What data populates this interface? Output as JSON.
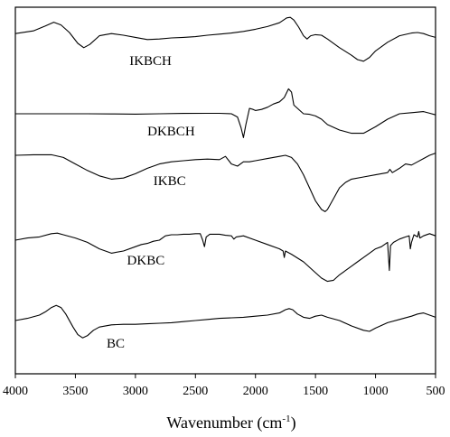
{
  "chart_data": {
    "type": "line",
    "xlabel_main": "Wavenumber (cm",
    "xlabel_sup": "-1",
    "xlabel_close": ")",
    "xlim": [
      4000,
      500
    ],
    "x_reversed": true,
    "xticks": [
      4000,
      3500,
      3000,
      2500,
      2000,
      1500,
      1000,
      500
    ],
    "ylabel": "",
    "grid": false,
    "curve_colors": [
      "#000000"
    ],
    "y_scale": "arbitrary transmittance, vertically offset",
    "series": [
      {
        "name": "IKBCH",
        "label_x": 3050,
        "points": [
          [
            4000,
            0.04
          ],
          [
            3850,
            0.065
          ],
          [
            3750,
            0.11
          ],
          [
            3680,
            0.145
          ],
          [
            3620,
            0.12
          ],
          [
            3550,
            0.05
          ],
          [
            3480,
            -0.05
          ],
          [
            3430,
            -0.09
          ],
          [
            3380,
            -0.06
          ],
          [
            3300,
            0.02
          ],
          [
            3200,
            0.04
          ],
          [
            3100,
            0.025
          ],
          [
            3000,
            0.005
          ],
          [
            2900,
            -0.015
          ],
          [
            2800,
            -0.01
          ],
          [
            2700,
            0.0
          ],
          [
            2600,
            0.005
          ],
          [
            2500,
            0.012
          ],
          [
            2400,
            0.025
          ],
          [
            2300,
            0.035
          ],
          [
            2200,
            0.045
          ],
          [
            2100,
            0.06
          ],
          [
            2000,
            0.08
          ],
          [
            1900,
            0.105
          ],
          [
            1800,
            0.14
          ],
          [
            1740,
            0.185
          ],
          [
            1710,
            0.19
          ],
          [
            1680,
            0.165
          ],
          [
            1640,
            0.1
          ],
          [
            1600,
            0.02
          ],
          [
            1570,
            -0.01
          ],
          [
            1540,
            0.02
          ],
          [
            1500,
            0.03
          ],
          [
            1450,
            0.025
          ],
          [
            1400,
            -0.01
          ],
          [
            1300,
            -0.09
          ],
          [
            1200,
            -0.16
          ],
          [
            1150,
            -0.2
          ],
          [
            1100,
            -0.215
          ],
          [
            1050,
            -0.18
          ],
          [
            1000,
            -0.12
          ],
          [
            900,
            -0.04
          ],
          [
            800,
            0.02
          ],
          [
            700,
            0.045
          ],
          [
            650,
            0.05
          ],
          [
            600,
            0.04
          ],
          [
            550,
            0.02
          ],
          [
            500,
            0.005
          ]
        ]
      },
      {
        "name": "DKBCH",
        "label_x": 2900,
        "points": [
          [
            4000,
            0.0
          ],
          [
            3800,
            0.0
          ],
          [
            3600,
            0.0
          ],
          [
            3400,
            0.0
          ],
          [
            3200,
            -0.002
          ],
          [
            3000,
            -0.003
          ],
          [
            2800,
            0.0
          ],
          [
            2600,
            0.003
          ],
          [
            2400,
            0.004
          ],
          [
            2300,
            0.004
          ],
          [
            2200,
            0.0
          ],
          [
            2150,
            -0.03
          ],
          [
            2120,
            -0.13
          ],
          [
            2100,
            -0.22
          ],
          [
            2080,
            -0.1
          ],
          [
            2050,
            0.05
          ],
          [
            2020,
            0.04
          ],
          [
            2000,
            0.03
          ],
          [
            1950,
            0.04
          ],
          [
            1900,
            0.06
          ],
          [
            1850,
            0.09
          ],
          [
            1800,
            0.11
          ],
          [
            1760,
            0.15
          ],
          [
            1725,
            0.23
          ],
          [
            1700,
            0.2
          ],
          [
            1680,
            0.08
          ],
          [
            1650,
            0.05
          ],
          [
            1620,
            0.02
          ],
          [
            1600,
            0.0
          ],
          [
            1550,
            -0.005
          ],
          [
            1500,
            -0.02
          ],
          [
            1450,
            -0.05
          ],
          [
            1400,
            -0.1
          ],
          [
            1300,
            -0.15
          ],
          [
            1200,
            -0.18
          ],
          [
            1100,
            -0.18
          ],
          [
            1000,
            -0.12
          ],
          [
            900,
            -0.05
          ],
          [
            800,
            0.0
          ],
          [
            700,
            0.01
          ],
          [
            650,
            0.015
          ],
          [
            600,
            0.02
          ],
          [
            550,
            0.005
          ],
          [
            500,
            -0.01
          ]
        ]
      },
      {
        "name": "IKBC",
        "label_x": 2850,
        "points": [
          [
            4000,
            0.0
          ],
          [
            3850,
            0.005
          ],
          [
            3700,
            0.005
          ],
          [
            3600,
            -0.02
          ],
          [
            3500,
            -0.08
          ],
          [
            3400,
            -0.14
          ],
          [
            3300,
            -0.19
          ],
          [
            3200,
            -0.22
          ],
          [
            3100,
            -0.21
          ],
          [
            3000,
            -0.17
          ],
          [
            2900,
            -0.12
          ],
          [
            2800,
            -0.08
          ],
          [
            2700,
            -0.06
          ],
          [
            2600,
            -0.05
          ],
          [
            2500,
            -0.04
          ],
          [
            2400,
            -0.035
          ],
          [
            2300,
            -0.04
          ],
          [
            2250,
            -0.01
          ],
          [
            2200,
            -0.08
          ],
          [
            2150,
            -0.1
          ],
          [
            2100,
            -0.06
          ],
          [
            2050,
            -0.06
          ],
          [
            2000,
            -0.05
          ],
          [
            1900,
            -0.03
          ],
          [
            1800,
            -0.01
          ],
          [
            1750,
            0.0
          ],
          [
            1700,
            -0.02
          ],
          [
            1650,
            -0.08
          ],
          [
            1600,
            -0.18
          ],
          [
            1550,
            -0.3
          ],
          [
            1500,
            -0.42
          ],
          [
            1450,
            -0.5
          ],
          [
            1420,
            -0.52
          ],
          [
            1400,
            -0.5
          ],
          [
            1350,
            -0.4
          ],
          [
            1300,
            -0.3
          ],
          [
            1250,
            -0.25
          ],
          [
            1200,
            -0.22
          ],
          [
            1100,
            -0.2
          ],
          [
            1000,
            -0.18
          ],
          [
            900,
            -0.16
          ],
          [
            880,
            -0.13
          ],
          [
            860,
            -0.16
          ],
          [
            800,
            -0.12
          ],
          [
            750,
            -0.08
          ],
          [
            700,
            -0.09
          ],
          [
            650,
            -0.06
          ],
          [
            600,
            -0.03
          ],
          [
            550,
            0.0
          ],
          [
            500,
            0.02
          ]
        ]
      },
      {
        "name": "DKBC",
        "label_x": 3070,
        "points": [
          [
            4000,
            0.0
          ],
          [
            3900,
            0.02
          ],
          [
            3800,
            0.03
          ],
          [
            3700,
            0.06
          ],
          [
            3650,
            0.065
          ],
          [
            3600,
            0.05
          ],
          [
            3500,
            0.02
          ],
          [
            3400,
            -0.02
          ],
          [
            3300,
            -0.08
          ],
          [
            3200,
            -0.12
          ],
          [
            3100,
            -0.1
          ],
          [
            3000,
            -0.06
          ],
          [
            2950,
            -0.04
          ],
          [
            2900,
            -0.03
          ],
          [
            2850,
            -0.01
          ],
          [
            2800,
            0.0
          ],
          [
            2750,
            0.04
          ],
          [
            2700,
            0.05
          ],
          [
            2650,
            0.05
          ],
          [
            2600,
            0.055
          ],
          [
            2550,
            0.055
          ],
          [
            2500,
            0.06
          ],
          [
            2460,
            0.06
          ],
          [
            2440,
            0.0
          ],
          [
            2425,
            -0.06
          ],
          [
            2410,
            0.03
          ],
          [
            2380,
            0.055
          ],
          [
            2300,
            0.055
          ],
          [
            2250,
            0.045
          ],
          [
            2200,
            0.04
          ],
          [
            2180,
            0.01
          ],
          [
            2160,
            0.03
          ],
          [
            2100,
            0.04
          ],
          [
            2000,
            0.0
          ],
          [
            1900,
            -0.04
          ],
          [
            1800,
            -0.08
          ],
          [
            1770,
            -0.1
          ],
          [
            1760,
            -0.16
          ],
          [
            1750,
            -0.1
          ],
          [
            1700,
            -0.13
          ],
          [
            1600,
            -0.2
          ],
          [
            1500,
            -0.3
          ],
          [
            1450,
            -0.35
          ],
          [
            1400,
            -0.38
          ],
          [
            1350,
            -0.37
          ],
          [
            1300,
            -0.32
          ],
          [
            1250,
            -0.28
          ],
          [
            1200,
            -0.24
          ],
          [
            1150,
            -0.2
          ],
          [
            1100,
            -0.16
          ],
          [
            1050,
            -0.12
          ],
          [
            1000,
            -0.08
          ],
          [
            950,
            -0.06
          ],
          [
            900,
            -0.02
          ],
          [
            885,
            -0.28
          ],
          [
            875,
            -0.05
          ],
          [
            850,
            -0.02
          ],
          [
            800,
            0.01
          ],
          [
            750,
            0.03
          ],
          [
            720,
            0.04
          ],
          [
            710,
            -0.08
          ],
          [
            700,
            -0.02
          ],
          [
            680,
            0.05
          ],
          [
            650,
            0.03
          ],
          [
            640,
            0.08
          ],
          [
            630,
            0.02
          ],
          [
            600,
            0.04
          ],
          [
            550,
            0.06
          ],
          [
            500,
            0.04
          ]
        ]
      },
      {
        "name": "BC",
        "label_x": 3240,
        "points": [
          [
            4000,
            0.0
          ],
          [
            3900,
            0.02
          ],
          [
            3800,
            0.05
          ],
          [
            3750,
            0.08
          ],
          [
            3700,
            0.12
          ],
          [
            3660,
            0.14
          ],
          [
            3620,
            0.12
          ],
          [
            3580,
            0.06
          ],
          [
            3520,
            -0.06
          ],
          [
            3480,
            -0.13
          ],
          [
            3440,
            -0.16
          ],
          [
            3400,
            -0.14
          ],
          [
            3350,
            -0.09
          ],
          [
            3300,
            -0.06
          ],
          [
            3200,
            -0.04
          ],
          [
            3100,
            -0.035
          ],
          [
            3000,
            -0.035
          ],
          [
            2900,
            -0.03
          ],
          [
            2800,
            -0.025
          ],
          [
            2700,
            -0.02
          ],
          [
            2600,
            -0.01
          ],
          [
            2500,
            0.0
          ],
          [
            2400,
            0.01
          ],
          [
            2300,
            0.02
          ],
          [
            2200,
            0.025
          ],
          [
            2100,
            0.03
          ],
          [
            2000,
            0.04
          ],
          [
            1900,
            0.05
          ],
          [
            1800,
            0.07
          ],
          [
            1750,
            0.1
          ],
          [
            1720,
            0.11
          ],
          [
            1690,
            0.1
          ],
          [
            1650,
            0.06
          ],
          [
            1600,
            0.03
          ],
          [
            1550,
            0.02
          ],
          [
            1500,
            0.04
          ],
          [
            1450,
            0.05
          ],
          [
            1400,
            0.03
          ],
          [
            1300,
            0.0
          ],
          [
            1200,
            -0.05
          ],
          [
            1100,
            -0.09
          ],
          [
            1050,
            -0.1
          ],
          [
            1000,
            -0.07
          ],
          [
            900,
            -0.02
          ],
          [
            800,
            0.01
          ],
          [
            700,
            0.04
          ],
          [
            650,
            0.06
          ],
          [
            600,
            0.07
          ],
          [
            550,
            0.05
          ],
          [
            500,
            0.03
          ]
        ]
      }
    ]
  }
}
